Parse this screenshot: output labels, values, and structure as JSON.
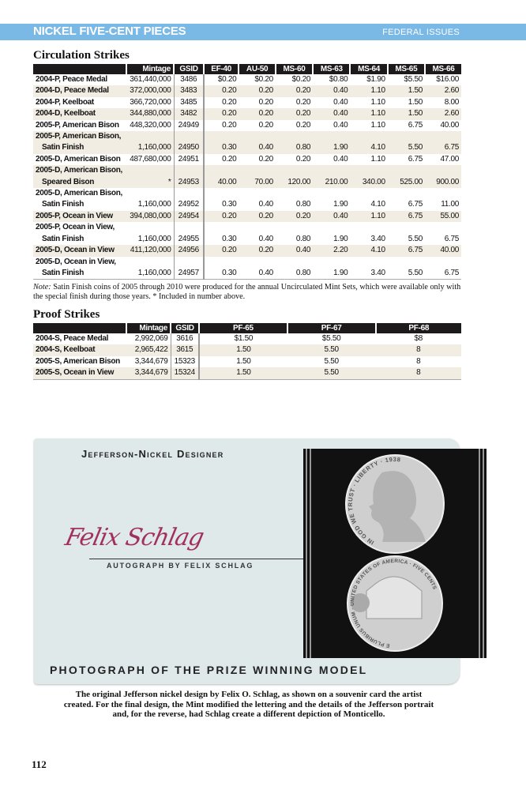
{
  "header": {
    "title": "NICKEL FIVE-CENT PIECES",
    "section": "FEDERAL ISSUES",
    "accent": "#7ab8e6"
  },
  "circulation": {
    "title": "Circulation Strikes",
    "columns": [
      "",
      "Mintage",
      "GSID",
      "EF-40",
      "AU-50",
      "MS-60",
      "MS-63",
      "MS-64",
      "MS-65",
      "MS-66"
    ],
    "rows": [
      {
        "label": [
          "2004-P, Peace Medal"
        ],
        "values": [
          "361,440,000",
          "3486",
          "$0.20",
          "$0.20",
          "$0.20",
          "$0.80",
          "$1.90",
          "$5.50",
          "$16.00"
        ]
      },
      {
        "label": [
          "2004-D, Peace Medal"
        ],
        "values": [
          "372,000,000",
          "3483",
          "0.20",
          "0.20",
          "0.20",
          "0.40",
          "1.10",
          "1.50",
          "2.60"
        ]
      },
      {
        "label": [
          "2004-P, Keelboat"
        ],
        "values": [
          "366,720,000",
          "3485",
          "0.20",
          "0.20",
          "0.20",
          "0.40",
          "1.10",
          "1.50",
          "8.00"
        ]
      },
      {
        "label": [
          "2004-D, Keelboat"
        ],
        "values": [
          "344,880,000",
          "3482",
          "0.20",
          "0.20",
          "0.20",
          "0.40",
          "1.10",
          "1.50",
          "2.60"
        ]
      },
      {
        "label": [
          "2005-P, American Bison"
        ],
        "values": [
          "448,320,000",
          "24949",
          "0.20",
          "0.20",
          "0.20",
          "0.40",
          "1.10",
          "6.75",
          "40.00"
        ]
      },
      {
        "label": [
          "2005-P, American Bison,",
          "Satin Finish"
        ],
        "values": [
          "1,160,000",
          "24950",
          "0.30",
          "0.40",
          "0.80",
          "1.90",
          "4.10",
          "5.50",
          "6.75"
        ]
      },
      {
        "label": [
          "2005-D, American Bison"
        ],
        "values": [
          "487,680,000",
          "24951",
          "0.20",
          "0.20",
          "0.20",
          "0.40",
          "1.10",
          "6.75",
          "47.00"
        ]
      },
      {
        "label": [
          "2005-D, American Bison,",
          "Speared Bison"
        ],
        "values": [
          "*",
          "24953",
          "40.00",
          "70.00",
          "120.00",
          "210.00",
          "340.00",
          "525.00",
          "900.00"
        ]
      },
      {
        "label": [
          "2005-D, American Bison,",
          "Satin Finish"
        ],
        "values": [
          "1,160,000",
          "24952",
          "0.30",
          "0.40",
          "0.80",
          "1.90",
          "4.10",
          "6.75",
          "11.00"
        ]
      },
      {
        "label": [
          "2005-P, Ocean in View"
        ],
        "values": [
          "394,080,000",
          "24954",
          "0.20",
          "0.20",
          "0.20",
          "0.40",
          "1.10",
          "6.75",
          "55.00"
        ]
      },
      {
        "label": [
          "2005-P, Ocean in View,",
          "Satin Finish"
        ],
        "values": [
          "1,160,000",
          "24955",
          "0.30",
          "0.40",
          "0.80",
          "1.90",
          "3.40",
          "5.50",
          "6.75"
        ]
      },
      {
        "label": [
          "2005-D, Ocean in View"
        ],
        "values": [
          "411,120,000",
          "24956",
          "0.20",
          "0.20",
          "0.40",
          "2.20",
          "4.10",
          "6.75",
          "40.00"
        ]
      },
      {
        "label": [
          "2005-D, Ocean in View,",
          "Satin Finish"
        ],
        "values": [
          "1,160,000",
          "24957",
          "0.30",
          "0.40",
          "0.80",
          "1.90",
          "3.40",
          "5.50",
          "6.75"
        ]
      }
    ],
    "note_label": "Note:",
    "note": " Satin Finish coins of 2005 through 2010 were produced for the annual Uncirculated Mint Sets, which were available only with the special finish during those years. * Included in number above."
  },
  "proof": {
    "title": "Proof Strikes",
    "columns": [
      "",
      "Mintage",
      "GSID",
      "PF-65",
      "PF-67",
      "PF-68"
    ],
    "rows": [
      {
        "label": [
          "2004-S, Peace Medal"
        ],
        "values": [
          "2,992,069",
          "3616",
          "$1.50",
          "$5.50",
          "$8"
        ]
      },
      {
        "label": [
          "2004-S, Keelboat"
        ],
        "values": [
          "2,965,422",
          "3615",
          "1.50",
          "5.50",
          "8"
        ]
      },
      {
        "label": [
          "2005-S, American Bison"
        ],
        "values": [
          "3,344,679",
          "15323",
          "1.50",
          "5.50",
          "8"
        ]
      },
      {
        "label": [
          "2005-S, Ocean in View"
        ],
        "values": [
          "3,344,679",
          "15324",
          "1.50",
          "5.50",
          "8"
        ]
      }
    ]
  },
  "card": {
    "heading": "Jefferson-Nickel Designer",
    "signature": "Felix Schlag",
    "autograph_label": "AUTOGRAPH BY FELIX SCHLAG",
    "footer": "PHOTOGRAPH OF THE PRIZE WINNING MODEL",
    "coin_obverse_text": "IN GOD WE TRUST · LIBERTY · 1938",
    "coin_reverse_text": "E PLURIBUS UNUM · UNITED STATES OF AMERICA · FIVE CENTS"
  },
  "caption": "The original Jefferson nickel design by Felix O. Schlag, as shown on a souvenir card the artist created. For the final design, the Mint modified the lettering and the details of the Jefferson portrait and, for the reverse, had Schlag create a different depiction of Monticello.",
  "page_number": "112"
}
